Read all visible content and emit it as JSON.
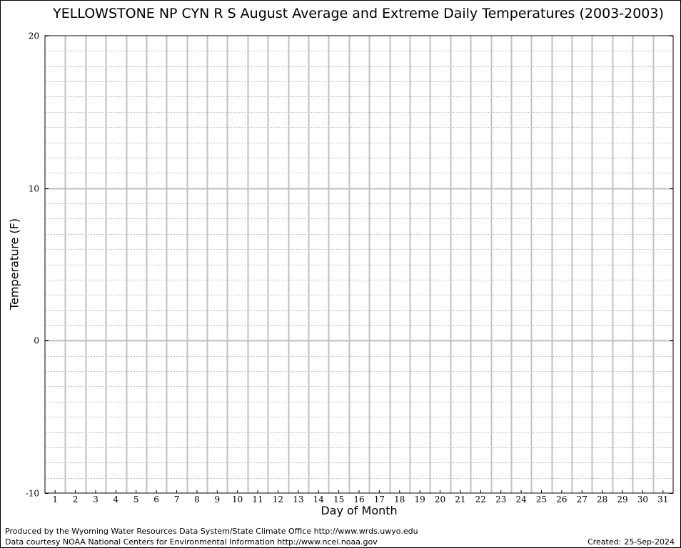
{
  "page": {
    "footer_line1": "Produced by the Wyoming Water Resources Data System/State Climate Office http://www.wrds.uwyo.edu",
    "footer_line2": "Data courtesy NOAA National Centers for Environmental Information http://www.ncei.noaa.gov",
    "created_label": "Created:",
    "created_date": "25-Sep-2024"
  },
  "chart_data": {
    "type": "line",
    "title": "YELLOWSTONE NP CYN R S August Average and Extreme Daily Temperatures (2003-2003)",
    "xlabel": "Day of Month",
    "ylabel": "Temperature (F)",
    "x": [
      1,
      2,
      3,
      4,
      5,
      6,
      7,
      8,
      9,
      10,
      11,
      12,
      13,
      14,
      15,
      16,
      17,
      18,
      19,
      20,
      21,
      22,
      23,
      24,
      25,
      26,
      27,
      28,
      29,
      30,
      31
    ],
    "xlim": [
      0.5,
      31.5
    ],
    "ylim": [
      -10,
      20
    ],
    "yticks": [
      -10,
      0,
      10,
      20
    ],
    "y_minor_step": 1,
    "grid": true,
    "series": [],
    "colors": {
      "major_grid": "#c0c0c0",
      "minor_grid": "#bfbfbf",
      "axis": "#000000"
    }
  }
}
